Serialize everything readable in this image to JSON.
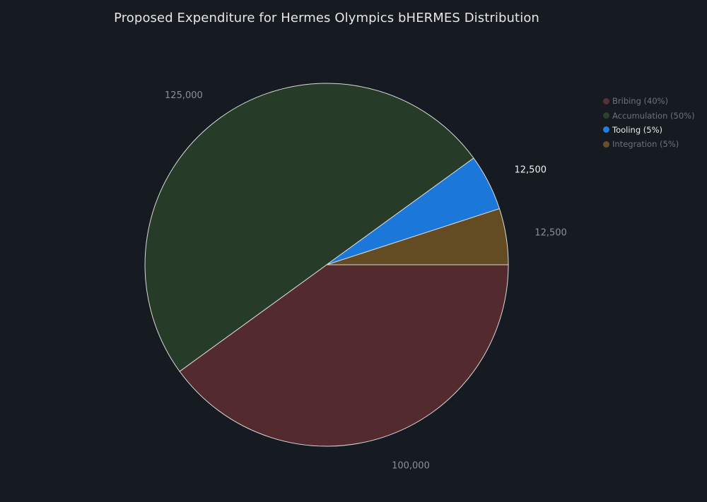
{
  "chart_data": {
    "type": "pie",
    "title": "Proposed Expenditure for Hermes Olympics bHERMES Distribution",
    "legend_placement": "top-right",
    "highlighted": "Tooling (5%)",
    "slices": [
      {
        "label": "Bribing (40%)",
        "value": 100000,
        "value_label": "100,000",
        "color": "#532b2e",
        "legend_color": "#5a3033"
      },
      {
        "label": "Accumulation (50%)",
        "value": 125000,
        "value_label": "125,000",
        "color": "#263c29",
        "legend_color": "#2a422d"
      },
      {
        "label": "Tooling (5%)",
        "value": 12500,
        "value_label": "12,500",
        "color": "#1b78d8",
        "legend_color": "#1d7fe3"
      },
      {
        "label": "Integration (5%)",
        "value": 12500,
        "value_label": "12,500",
        "color": "#634b24",
        "legend_color": "#6a5027"
      }
    ],
    "slice_border_color": "#d9d9d9"
  }
}
